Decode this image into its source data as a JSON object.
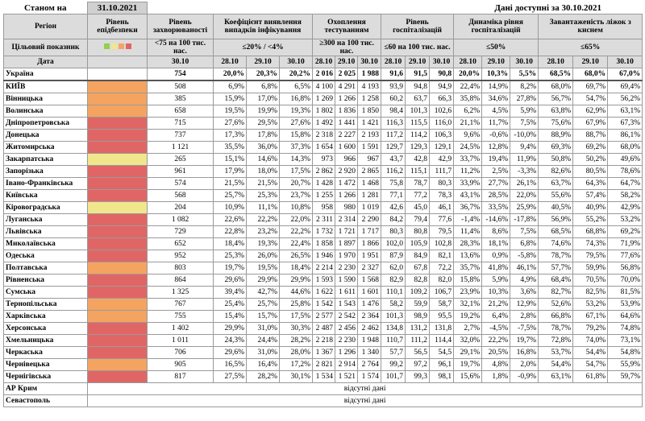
{
  "header": {
    "as_of_label": "Станом на",
    "as_of_date": "31.10.2021",
    "available": "Дані доступні за 30.10.2021"
  },
  "columns": {
    "region": "Регіон",
    "level": "Рівень епідбезпеки",
    "incidence": "Рівень захворюваності",
    "detection": "Коефіцієнт виявлення випадків інфікування",
    "testing": "Охоплення тестуванням",
    "hosp": "Рівень госпіталізацій",
    "dynamics": "Динаміка рівня госпіталізацій",
    "beds": "Завантаженість ліжок з киснем"
  },
  "targets": {
    "label": "Цільовий показник",
    "incidence": "<75 на 100 тис. нас.",
    "detection": "≤20% / <4%",
    "testing": "≥300 на 100 тис. нас.",
    "hosp": "≤60 на 100 тис. нас.",
    "dynamics": "≤50%",
    "beds": "≤65%"
  },
  "dates": {
    "label": "Дата",
    "incidence": "30.10",
    "series": [
      "28.10",
      "29.10",
      "30.10"
    ]
  },
  "rows": [
    {
      "region": "Україна",
      "level": null,
      "incidence": "754",
      "detection": [
        "20,0%",
        "20,3%",
        "20,2%"
      ],
      "testing": [
        "2 016",
        "2 025",
        "1 988"
      ],
      "hosp": [
        "91,6",
        "91,5",
        "90,8"
      ],
      "dynamics": [
        "20,0%",
        "10,3%",
        "5,5%"
      ],
      "beds": [
        "68,5%",
        "68,0%",
        "67,0%"
      ]
    },
    {
      "region": "КИЇВ",
      "level": "#f4a460",
      "incidence": "508",
      "detection": [
        "6,9%",
        "6,8%",
        "6,5%"
      ],
      "testing": [
        "4 100",
        "4 291",
        "4 193"
      ],
      "hosp": [
        "93,9",
        "94,8",
        "94,9"
      ],
      "dynamics": [
        "22,4%",
        "14,9%",
        "8,2%"
      ],
      "beds": [
        "68,0%",
        "69,7%",
        "69,4%"
      ]
    },
    {
      "region": "Вінницька",
      "level": "#f4a460",
      "incidence": "385",
      "detection": [
        "15,9%",
        "17,0%",
        "16,8%"
      ],
      "testing": [
        "1 269",
        "1 266",
        "1 258"
      ],
      "hosp": [
        "60,2",
        "63,7",
        "66,3"
      ],
      "dynamics": [
        "35,8%",
        "34,6%",
        "27,8%"
      ],
      "beds": [
        "56,7%",
        "54,7%",
        "56,2%"
      ]
    },
    {
      "region": "Волинська",
      "level": "#f4a460",
      "incidence": "658",
      "detection": [
        "19,5%",
        "19,9%",
        "19,3%"
      ],
      "testing": [
        "1 802",
        "1 836",
        "1 850"
      ],
      "hosp": [
        "98,4",
        "101,3",
        "102,6"
      ],
      "dynamics": [
        "6,2%",
        "4,5%",
        "5,9%"
      ],
      "beds": [
        "63,8%",
        "62,9%",
        "63,1%"
      ]
    },
    {
      "region": "Дніпропетровська",
      "level": "#e06666",
      "incidence": "715",
      "detection": [
        "27,6%",
        "29,5%",
        "27,6%"
      ],
      "testing": [
        "1 492",
        "1 441",
        "1 421"
      ],
      "hosp": [
        "116,3",
        "115,5",
        "116,0"
      ],
      "dynamics": [
        "21,1%",
        "11,7%",
        "7,5%"
      ],
      "beds": [
        "75,6%",
        "67,9%",
        "67,3%"
      ]
    },
    {
      "region": "Донецька",
      "level": "#e06666",
      "incidence": "737",
      "detection": [
        "17,3%",
        "17,8%",
        "15,8%"
      ],
      "testing": [
        "2 318",
        "2 227",
        "2 193"
      ],
      "hosp": [
        "117,2",
        "114,2",
        "106,3"
      ],
      "dynamics": [
        "9,6%",
        "-0,6%",
        "-10,0%"
      ],
      "beds": [
        "88,9%",
        "88,7%",
        "86,1%"
      ]
    },
    {
      "region": "Житомирська",
      "level": "#e06666",
      "incidence": "1 121",
      "detection": [
        "35,5%",
        "36,0%",
        "37,3%"
      ],
      "testing": [
        "1 654",
        "1 600",
        "1 591"
      ],
      "hosp": [
        "129,7",
        "129,3",
        "129,1"
      ],
      "dynamics": [
        "24,5%",
        "12,8%",
        "9,4%"
      ],
      "beds": [
        "69,3%",
        "69,2%",
        "68,0%"
      ]
    },
    {
      "region": "Закарпатська",
      "level": "#f0e68c",
      "incidence": "265",
      "detection": [
        "15,1%",
        "14,6%",
        "14,3%"
      ],
      "testing": [
        "973",
        "966",
        "967"
      ],
      "hosp": [
        "43,7",
        "42,8",
        "42,9"
      ],
      "dynamics": [
        "33,7%",
        "19,4%",
        "11,9%"
      ],
      "beds": [
        "50,8%",
        "50,2%",
        "49,6%"
      ]
    },
    {
      "region": "Запорізька",
      "level": "#e06666",
      "incidence": "961",
      "detection": [
        "17,9%",
        "18,0%",
        "17,5%"
      ],
      "testing": [
        "2 862",
        "2 920",
        "2 865"
      ],
      "hosp": [
        "116,2",
        "115,1",
        "111,7"
      ],
      "dynamics": [
        "11,2%",
        "2,5%",
        "-3,3%"
      ],
      "beds": [
        "82,6%",
        "80,5%",
        "78,6%"
      ]
    },
    {
      "region": "Івано-Франківська",
      "level": "#e06666",
      "incidence": "574",
      "detection": [
        "21,5%",
        "21,5%",
        "20,7%"
      ],
      "testing": [
        "1 428",
        "1 472",
        "1 468"
      ],
      "hosp": [
        "75,8",
        "78,7",
        "80,3"
      ],
      "dynamics": [
        "33,9%",
        "27,7%",
        "26,1%"
      ],
      "beds": [
        "63,7%",
        "64,3%",
        "64,7%"
      ]
    },
    {
      "region": "Київська",
      "level": "#e06666",
      "incidence": "568",
      "detection": [
        "25,7%",
        "25,3%",
        "23,7%"
      ],
      "testing": [
        "1 255",
        "1 266",
        "1 281"
      ],
      "hosp": [
        "77,1",
        "77,2",
        "78,3"
      ],
      "dynamics": [
        "43,1%",
        "28,5%",
        "22,0%"
      ],
      "beds": [
        "55,6%",
        "57,4%",
        "58,2%"
      ]
    },
    {
      "region": "Кіровоградська",
      "level": "#f0e68c",
      "incidence": "204",
      "detection": [
        "10,9%",
        "11,1%",
        "10,8%"
      ],
      "testing": [
        "958",
        "980",
        "1 019"
      ],
      "hosp": [
        "42,6",
        "45,0",
        "46,1"
      ],
      "dynamics": [
        "36,7%",
        "33,5%",
        "25,9%"
      ],
      "beds": [
        "40,5%",
        "40,9%",
        "42,9%"
      ]
    },
    {
      "region": "Луганська",
      "level": "#e06666",
      "incidence": "1 082",
      "detection": [
        "22,6%",
        "22,2%",
        "22,0%"
      ],
      "testing": [
        "2 311",
        "2 314",
        "2 290"
      ],
      "hosp": [
        "84,2",
        "79,4",
        "77,6"
      ],
      "dynamics": [
        "-1,4%",
        "-14,6%",
        "-17,8%"
      ],
      "beds": [
        "56,9%",
        "55,2%",
        "53,2%"
      ]
    },
    {
      "region": "Львівська",
      "level": "#e06666",
      "incidence": "729",
      "detection": [
        "22,8%",
        "23,2%",
        "22,2%"
      ],
      "testing": [
        "1 732",
        "1 721",
        "1 717"
      ],
      "hosp": [
        "80,3",
        "80,8",
        "79,5"
      ],
      "dynamics": [
        "11,4%",
        "8,6%",
        "7,5%"
      ],
      "beds": [
        "68,5%",
        "68,8%",
        "69,2%"
      ]
    },
    {
      "region": "Миколаївська",
      "level": "#e06666",
      "incidence": "652",
      "detection": [
        "18,4%",
        "19,3%",
        "22,4%"
      ],
      "testing": [
        "1 858",
        "1 897",
        "1 866"
      ],
      "hosp": [
        "102,0",
        "105,9",
        "102,8"
      ],
      "dynamics": [
        "28,3%",
        "18,1%",
        "6,8%"
      ],
      "beds": [
        "74,6%",
        "74,3%",
        "71,9%"
      ]
    },
    {
      "region": "Одеська",
      "level": "#e06666",
      "incidence": "952",
      "detection": [
        "25,3%",
        "26,0%",
        "26,5%"
      ],
      "testing": [
        "1 946",
        "1 970",
        "1 951"
      ],
      "hosp": [
        "87,9",
        "84,9",
        "82,1"
      ],
      "dynamics": [
        "13,6%",
        "0,9%",
        "-5,8%"
      ],
      "beds": [
        "78,7%",
        "79,5%",
        "77,6%"
      ]
    },
    {
      "region": "Полтавська",
      "level": "#f4a460",
      "incidence": "803",
      "detection": [
        "19,7%",
        "19,5%",
        "18,4%"
      ],
      "testing": [
        "2 214",
        "2 230",
        "2 327"
      ],
      "hosp": [
        "62,0",
        "67,8",
        "72,2"
      ],
      "dynamics": [
        "35,7%",
        "41,8%",
        "46,1%"
      ],
      "beds": [
        "57,7%",
        "59,9%",
        "56,8%"
      ]
    },
    {
      "region": "Рівненська",
      "level": "#e06666",
      "incidence": "864",
      "detection": [
        "29,6%",
        "29,9%",
        "29,9%"
      ],
      "testing": [
        "1 593",
        "1 590",
        "1 568"
      ],
      "hosp": [
        "82,9",
        "82,8",
        "82,0"
      ],
      "dynamics": [
        "15,8%",
        "5,9%",
        "4,9%"
      ],
      "beds": [
        "68,4%",
        "70,5%",
        "70,0%"
      ]
    },
    {
      "region": "Сумська",
      "level": "#e06666",
      "incidence": "1 325",
      "detection": [
        "39,4%",
        "42,7%",
        "44,6%"
      ],
      "testing": [
        "1 622",
        "1 611",
        "1 601"
      ],
      "hosp": [
        "110,1",
        "109,2",
        "106,7"
      ],
      "dynamics": [
        "23,9%",
        "10,3%",
        "3,6%"
      ],
      "beds": [
        "82,7%",
        "82,5%",
        "81,5%"
      ]
    },
    {
      "region": "Тернопільська",
      "level": "#f4a460",
      "incidence": "767",
      "detection": [
        "25,4%",
        "25,7%",
        "25,8%"
      ],
      "testing": [
        "1 542",
        "1 543",
        "1 476"
      ],
      "hosp": [
        "58,2",
        "59,9",
        "58,7"
      ],
      "dynamics": [
        "32,1%",
        "21,2%",
        "12,9%"
      ],
      "beds": [
        "52,6%",
        "53,2%",
        "53,9%"
      ]
    },
    {
      "region": "Харківська",
      "level": "#f4a460",
      "incidence": "755",
      "detection": [
        "15,4%",
        "15,7%",
        "17,5%"
      ],
      "testing": [
        "2 577",
        "2 542",
        "2 364"
      ],
      "hosp": [
        "101,3",
        "98,9",
        "95,5"
      ],
      "dynamics": [
        "19,2%",
        "6,4%",
        "2,8%"
      ],
      "beds": [
        "66,8%",
        "67,1%",
        "64,6%"
      ]
    },
    {
      "region": "Херсонська",
      "level": "#e06666",
      "incidence": "1 402",
      "detection": [
        "29,9%",
        "31,0%",
        "30,3%"
      ],
      "testing": [
        "2 487",
        "2 456",
        "2 462"
      ],
      "hosp": [
        "134,8",
        "131,2",
        "131,8"
      ],
      "dynamics": [
        "2,7%",
        "-4,5%",
        "-7,5%"
      ],
      "beds": [
        "78,7%",
        "79,2%",
        "74,8%"
      ]
    },
    {
      "region": "Хмельницька",
      "level": "#e06666",
      "incidence": "1 011",
      "detection": [
        "24,3%",
        "24,4%",
        "28,2%"
      ],
      "testing": [
        "2 218",
        "2 230",
        "1 948"
      ],
      "hosp": [
        "110,7",
        "111,2",
        "114,4"
      ],
      "dynamics": [
        "32,0%",
        "22,2%",
        "19,7%"
      ],
      "beds": [
        "72,8%",
        "74,0%",
        "73,1%"
      ]
    },
    {
      "region": "Черкаська",
      "level": "#e06666",
      "incidence": "706",
      "detection": [
        "29,6%",
        "31,0%",
        "28,0%"
      ],
      "testing": [
        "1 367",
        "1 296",
        "1 340"
      ],
      "hosp": [
        "57,7",
        "56,5",
        "54,5"
      ],
      "dynamics": [
        "29,1%",
        "20,5%",
        "16,8%"
      ],
      "beds": [
        "53,7%",
        "54,4%",
        "54,8%"
      ]
    },
    {
      "region": "Чернівецька",
      "level": "#f4a460",
      "incidence": "905",
      "detection": [
        "16,5%",
        "16,4%",
        "17,2%"
      ],
      "testing": [
        "2 821",
        "2 914",
        "2 764"
      ],
      "hosp": [
        "99,2",
        "97,2",
        "96,1"
      ],
      "dynamics": [
        "19,7%",
        "4,8%",
        "2,0%"
      ],
      "beds": [
        "54,4%",
        "54,7%",
        "55,9%"
      ]
    },
    {
      "region": "Чернігівська",
      "level": "#e06666",
      "incidence": "817",
      "detection": [
        "27,5%",
        "28,2%",
        "30,1%"
      ],
      "testing": [
        "1 534",
        "1 521",
        "1 574"
      ],
      "hosp": [
        "101,7",
        "99,3",
        "98,1"
      ],
      "dynamics": [
        "15,6%",
        "1,8%",
        "-0,9%"
      ],
      "beds": [
        "63,1%",
        "61,8%",
        "59,7%"
      ]
    }
  ],
  "no_data": {
    "regions": [
      "АР Крим",
      "Севастополь"
    ],
    "text": "відсутні дані"
  }
}
